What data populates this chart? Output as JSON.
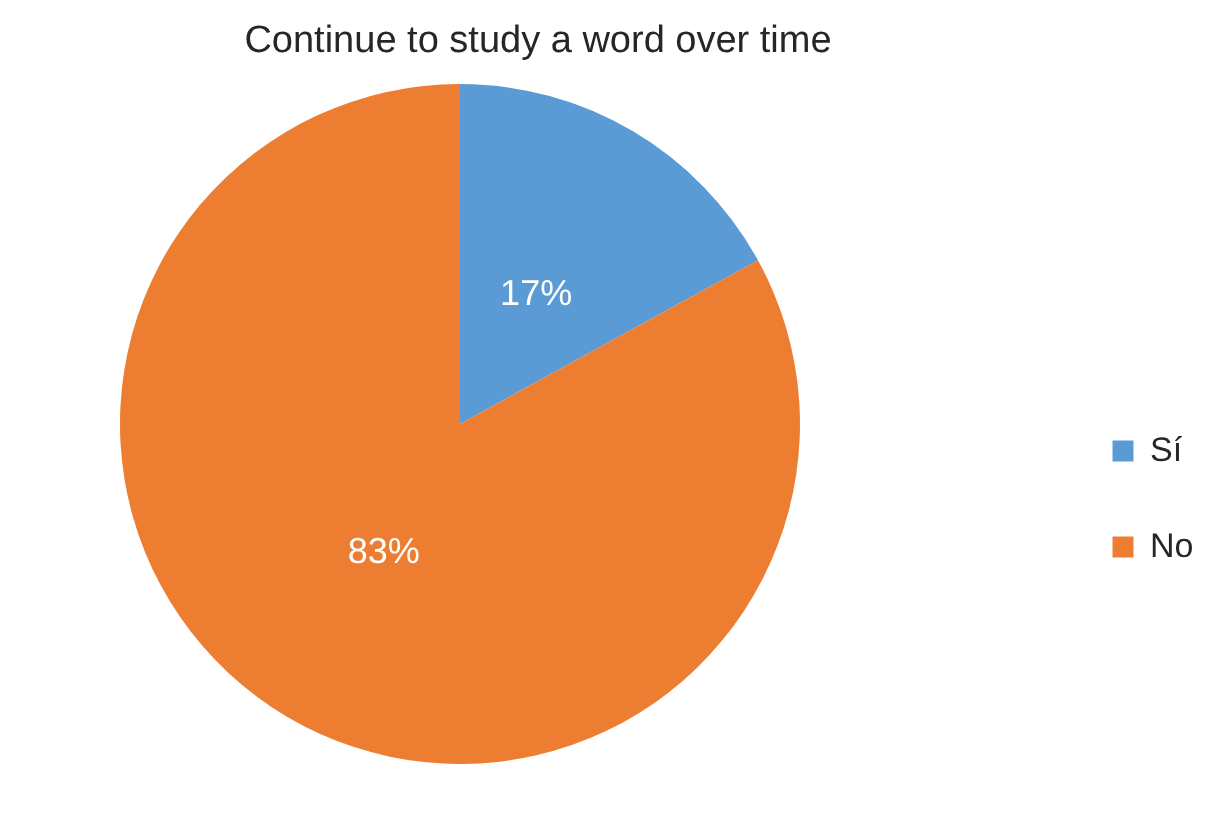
{
  "chart_data": {
    "type": "pie",
    "title": "Continue to study a word over time",
    "categories": [
      "Sí",
      "No"
    ],
    "values": [
      17,
      83
    ],
    "colors": [
      "#5b9bd5",
      "#ed7d31"
    ],
    "value_labels": [
      "17%",
      "83%"
    ],
    "legend": "right"
  }
}
